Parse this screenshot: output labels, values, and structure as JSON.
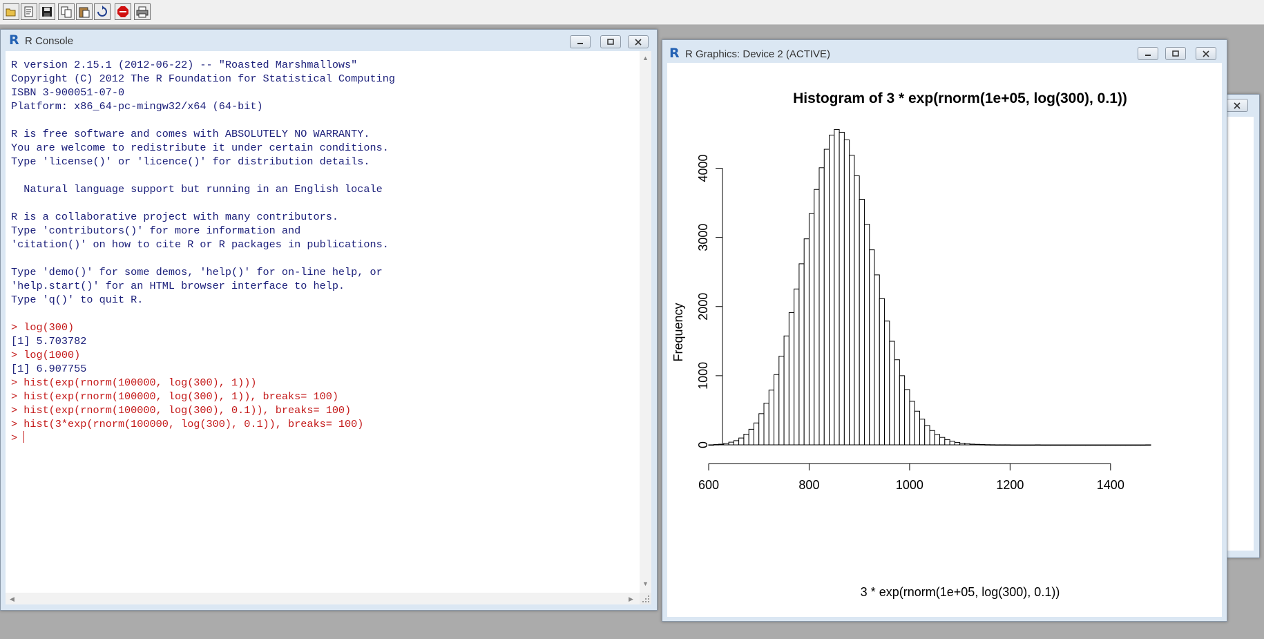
{
  "toolbar": {
    "buttons": [
      {
        "name": "open-script-icon"
      },
      {
        "name": "load-workspace-icon"
      },
      {
        "name": "save-workspace-icon"
      },
      {
        "name": "copy-icon"
      },
      {
        "name": "paste-icon"
      },
      {
        "name": "copy-paste-icon"
      },
      {
        "name": "stop-icon"
      },
      {
        "name": "print-icon"
      }
    ]
  },
  "console": {
    "title": "R Console",
    "lines": [
      {
        "text": "R version 2.15.1 (2012-06-22) -- \"Roasted Marshmallows\"",
        "type": "out"
      },
      {
        "text": "Copyright (C) 2012 The R Foundation for Statistical Computing",
        "type": "out"
      },
      {
        "text": "ISBN 3-900051-07-0",
        "type": "out"
      },
      {
        "text": "Platform: x86_64-pc-mingw32/x64 (64-bit)",
        "type": "out"
      },
      {
        "text": "",
        "type": "out"
      },
      {
        "text": "R is free software and comes with ABSOLUTELY NO WARRANTY.",
        "type": "out"
      },
      {
        "text": "You are welcome to redistribute it under certain conditions.",
        "type": "out"
      },
      {
        "text": "Type 'license()' or 'licence()' for distribution details.",
        "type": "out"
      },
      {
        "text": "",
        "type": "out"
      },
      {
        "text": "  Natural language support but running in an English locale",
        "type": "out"
      },
      {
        "text": "",
        "type": "out"
      },
      {
        "text": "R is a collaborative project with many contributors.",
        "type": "out"
      },
      {
        "text": "Type 'contributors()' for more information and",
        "type": "out"
      },
      {
        "text": "'citation()' on how to cite R or R packages in publications.",
        "type": "out"
      },
      {
        "text": "",
        "type": "out"
      },
      {
        "text": "Type 'demo()' for some demos, 'help()' for on-line help, or",
        "type": "out"
      },
      {
        "text": "'help.start()' for an HTML browser interface to help.",
        "type": "out"
      },
      {
        "text": "Type 'q()' to quit R.",
        "type": "out"
      },
      {
        "text": "",
        "type": "out"
      },
      {
        "text": "> log(300)",
        "type": "cmd"
      },
      {
        "text": "[1] 5.703782",
        "type": "out"
      },
      {
        "text": "> log(1000)",
        "type": "cmd"
      },
      {
        "text": "[1] 6.907755",
        "type": "out"
      },
      {
        "text": "> hist(exp(rnorm(100000, log(300), 1)))",
        "type": "cmd"
      },
      {
        "text": "> hist(exp(rnorm(100000, log(300), 1)), breaks= 100)",
        "type": "cmd"
      },
      {
        "text": "> hist(exp(rnorm(100000, log(300), 0.1)), breaks= 100)",
        "type": "cmd"
      },
      {
        "text": "> hist(3*exp(rnorm(100000, log(300), 0.1)), breaks= 100)",
        "type": "cmd"
      }
    ],
    "prompt": "> "
  },
  "graphics": {
    "title": "R Graphics: Device 2 (ACTIVE)"
  },
  "chart_data": {
    "type": "bar",
    "title": "Histogram of 3 * exp(rnorm(1e+05, log(300), 0.1))",
    "xlabel": "3 * exp(rnorm(1e+05, log(300), 0.1))",
    "ylabel": "Frequency",
    "xlim": [
      600,
      1480
    ],
    "ylim": [
      0,
      4600
    ],
    "xticks": [
      600,
      800,
      1000,
      1200,
      1400
    ],
    "yticks": [
      0,
      1000,
      2000,
      3000,
      4000
    ],
    "bin_start": 600,
    "bin_width": 10,
    "values": [
      1,
      5,
      10,
      22,
      39,
      61,
      99,
      155,
      226,
      317,
      451,
      603,
      792,
      1016,
      1283,
      1575,
      1912,
      2254,
      2618,
      2979,
      3343,
      3693,
      4007,
      4274,
      4478,
      4560,
      4520,
      4410,
      4187,
      3890,
      3550,
      3190,
      2820,
      2458,
      2114,
      1790,
      1498,
      1231,
      1000,
      800,
      630,
      487,
      372,
      280,
      207,
      150,
      108,
      76,
      53,
      36,
      25,
      17,
      11,
      8,
      5,
      3,
      2,
      1,
      1,
      1,
      0,
      0,
      0,
      0,
      0,
      1,
      0,
      0,
      0,
      0,
      0,
      0,
      0,
      0,
      0,
      0,
      0,
      0,
      0,
      0,
      0,
      0,
      0,
      0,
      0,
      0,
      0,
      1
    ],
    "grid": false,
    "legend": "none"
  }
}
